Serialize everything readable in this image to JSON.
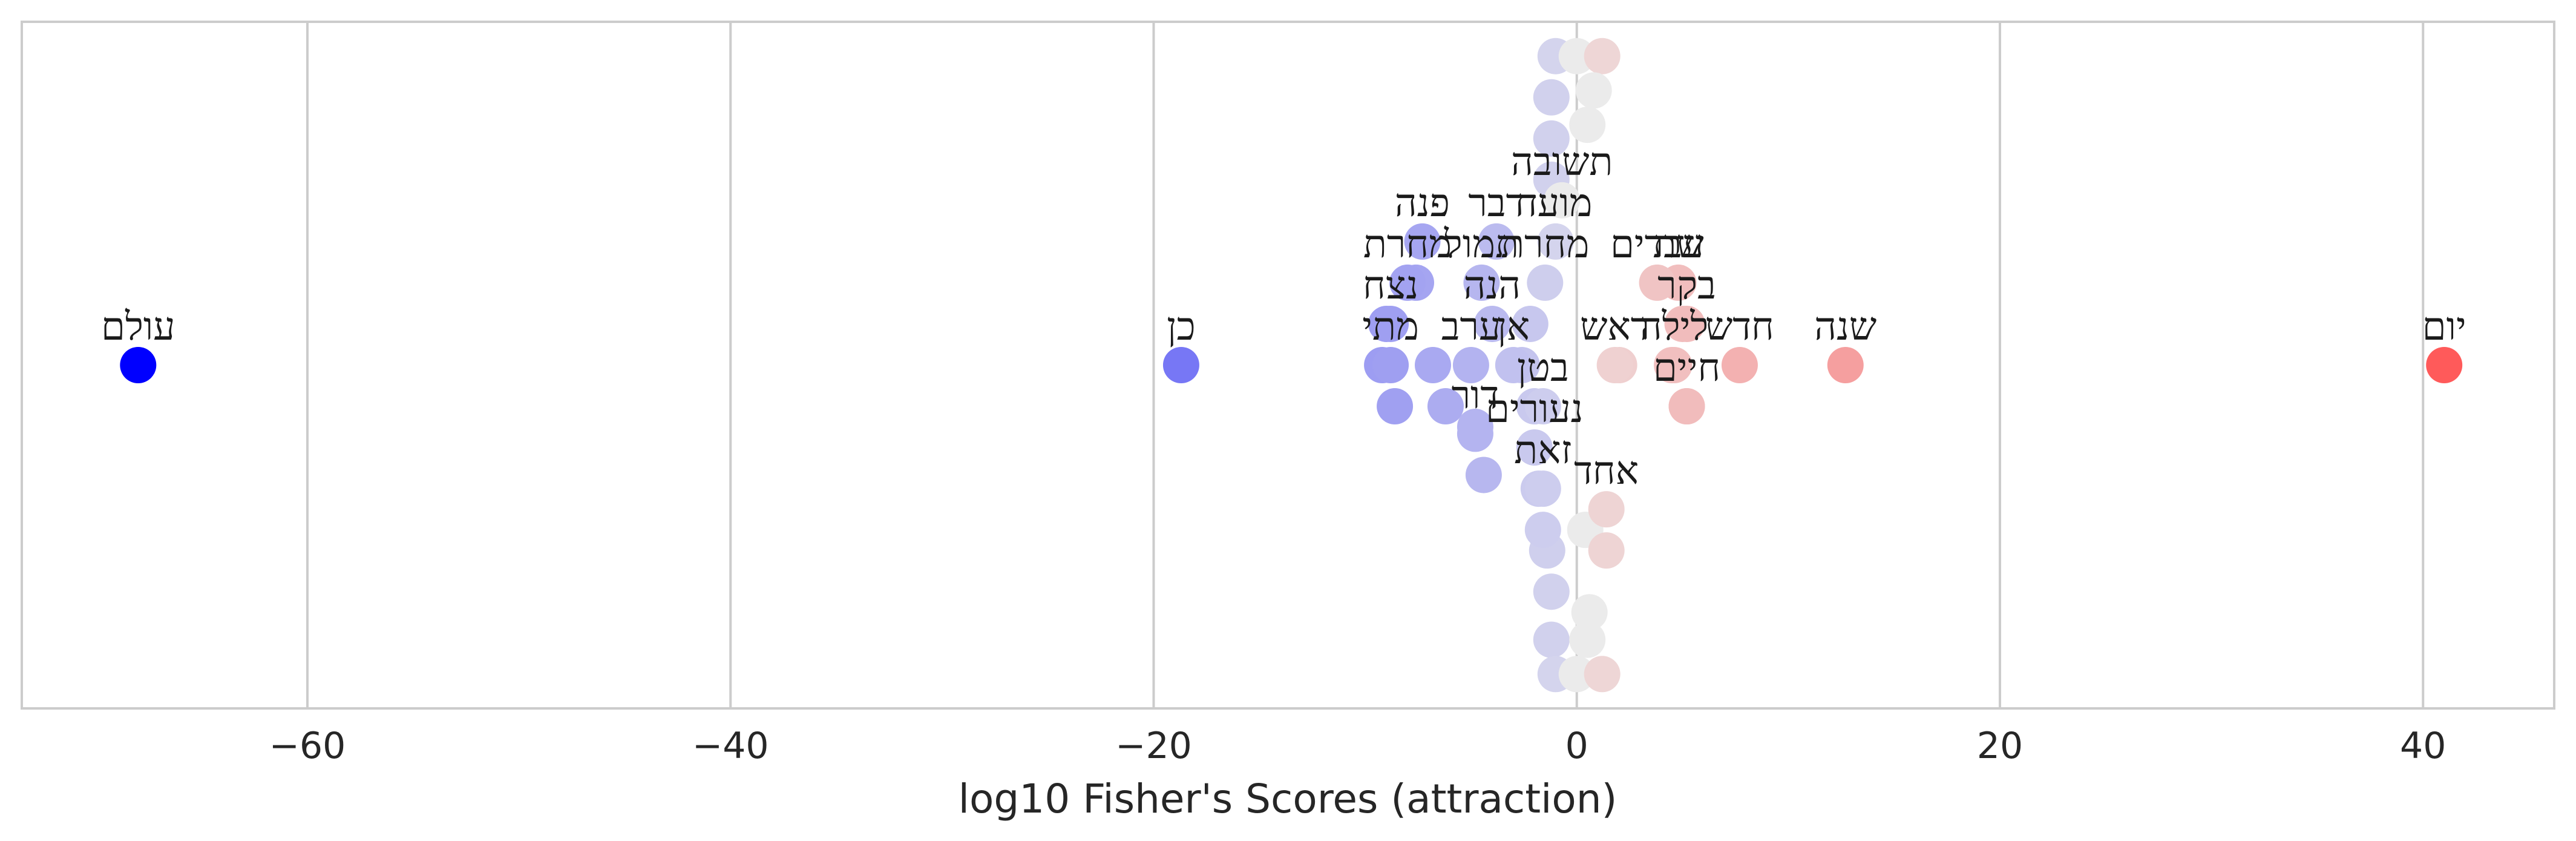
{
  "chart_data": {
    "type": "scatter",
    "title": "",
    "xlabel": "log10 Fisher's Scores (attraction)",
    "ylabel": "",
    "xlim": [
      -73.5,
      46.2
    ],
    "ylim": [
      -1.0,
      1.0
    ],
    "xticks": [
      -60,
      -40,
      -20,
      0,
      20,
      40
    ],
    "xtick_labels": [
      "−60",
      "−40",
      "−20",
      "0",
      "20",
      "40"
    ],
    "grid": "vertical",
    "color_scale": {
      "negative": "#0000ff",
      "neutral": "#ebebeb",
      "positive": "#ff5a5a"
    },
    "labeled_points": [
      {
        "word": "עולם",
        "x": -68.0,
        "y": 0.0
      },
      {
        "word": "כן",
        "x": -18.7,
        "y": 0.0
      },
      {
        "word": "יום",
        "x": 41.0,
        "y": 0.0
      },
      {
        "word": "שנה",
        "x": 12.7,
        "y": 0.0
      },
      {
        "word": "חדש",
        "x": 7.7,
        "y": 0.0
      },
      {
        "word": "לילה",
        "x": 4.6,
        "y": 0.0
      },
      {
        "word": "בקר",
        "x": 5.2,
        "y": 0.12
      },
      {
        "word": "חיים",
        "x": 5.2,
        "y": -0.12
      },
      {
        "word": "שת",
        "x": 4.8,
        "y": 0.24
      },
      {
        "word": "עברים",
        "x": 3.8,
        "y": 0.24
      },
      {
        "word": "ראש",
        "x": 1.8,
        "y": 0.0
      },
      {
        "word": "תשובה",
        "x": -0.7,
        "y": 0.48
      },
      {
        "word": "מועד",
        "x": -1.0,
        "y": 0.36
      },
      {
        "word": "דבר",
        "x": -3.8,
        "y": 0.36
      },
      {
        "word": "פנה",
        "x": -7.3,
        "y": 0.36
      },
      {
        "word": "מחרת",
        "x": -1.5,
        "y": 0.24
      },
      {
        "word": "תמול",
        "x": -4.5,
        "y": 0.24
      },
      {
        "word": "מחרת",
        "x": -8.0,
        "y": 0.24
      },
      {
        "word": "הנה",
        "x": -4.0,
        "y": 0.12
      },
      {
        "word": "נצח",
        "x": -8.8,
        "y": 0.12
      },
      {
        "word": "אן",
        "x": -3.0,
        "y": 0.0
      },
      {
        "word": "ערב",
        "x": -5.0,
        "y": 0.0
      },
      {
        "word": "מתי",
        "x": -8.8,
        "y": 0.0
      },
      {
        "word": "בטן",
        "x": -1.6,
        "y": -0.12
      },
      {
        "word": "דור",
        "x": -4.8,
        "y": -0.2
      },
      {
        "word": "נעורים",
        "x": -2.0,
        "y": -0.24
      },
      {
        "word": "זאת",
        "x": -1.6,
        "y": -0.36
      },
      {
        "word": "אחד",
        "x": 1.4,
        "y": -0.42
      }
    ],
    "background_points": [
      {
        "x": -1.0,
        "y": 0.9
      },
      {
        "x": 0.0,
        "y": 0.9
      },
      {
        "x": 1.2,
        "y": 0.9
      },
      {
        "x": -1.2,
        "y": 0.78
      },
      {
        "x": 0.8,
        "y": 0.8
      },
      {
        "x": -1.2,
        "y": 0.66
      },
      {
        "x": 0.5,
        "y": 0.7
      },
      {
        "x": -1.2,
        "y": 0.54
      },
      {
        "x": -1.4,
        "y": -0.54
      },
      {
        "x": 0.4,
        "y": -0.48
      },
      {
        "x": -1.2,
        "y": -0.66
      },
      {
        "x": 0.6,
        "y": -0.72
      },
      {
        "x": -1.2,
        "y": -0.8
      },
      {
        "x": 0.5,
        "y": -0.8
      },
      {
        "x": -1.0,
        "y": -0.9
      },
      {
        "x": 0.0,
        "y": -0.9
      },
      {
        "x": 1.2,
        "y": -0.9
      },
      {
        "x": -7.6,
        "y": 0.24
      },
      {
        "x": -9.0,
        "y": 0.12
      },
      {
        "x": -9.2,
        "y": 0.0
      },
      {
        "x": -6.8,
        "y": 0.0
      },
      {
        "x": -8.6,
        "y": -0.12
      },
      {
        "x": -6.2,
        "y": -0.12
      },
      {
        "x": -4.8,
        "y": -0.18
      },
      {
        "x": -4.4,
        "y": -0.32
      },
      {
        "x": -2.2,
        "y": 0.12
      },
      {
        "x": -2.6,
        "y": 0.0
      },
      {
        "x": -2.0,
        "y": -0.12
      },
      {
        "x": -1.8,
        "y": -0.36
      },
      {
        "x": -1.6,
        "y": -0.48
      },
      {
        "x": 1.4,
        "y": -0.54
      },
      {
        "x": 2.0,
        "y": 0.0
      },
      {
        "x": 5.2,
        "y": -0.12
      },
      {
        "x": 5.0,
        "y": 0.12
      },
      {
        "x": 4.5,
        "y": 0.0
      }
    ]
  }
}
